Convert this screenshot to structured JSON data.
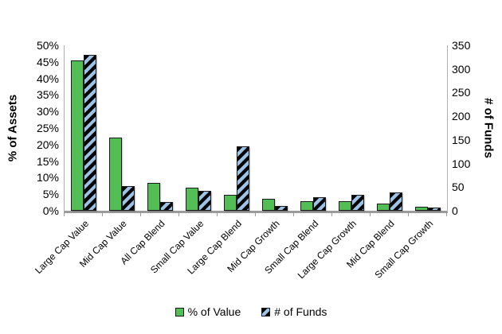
{
  "chart_data": {
    "type": "bar",
    "title": "",
    "categories": [
      "Large Cap Value",
      "Mid Cap Value",
      "All Cap Blend",
      "Small Cap Value",
      "Large Cap Blend",
      "Mid Cap Growth",
      "Small Cap Blend",
      "Large Cap Growth",
      "Mid Cap Blend",
      "Small Cap Growth"
    ],
    "series": [
      {
        "name": "% of Value",
        "axis": "left",
        "unit": "%",
        "values": [
          45.5,
          22,
          8.5,
          7,
          4.7,
          3.5,
          3,
          2.8,
          2.1,
          1.2
        ],
        "color": "#53BE56"
      },
      {
        "name": "# of Funds",
        "axis": "right",
        "unit": "funds",
        "values": [
          330,
          52,
          18,
          42,
          137,
          10,
          28,
          33,
          39,
          6
        ],
        "fill": "hatch",
        "hatch_colors": [
          "#050505",
          "#9CC2E5"
        ]
      }
    ],
    "left_axis": {
      "title": "% of Assets",
      "min": 0,
      "max": 50,
      "step": 5,
      "suffix": "%"
    },
    "right_axis": {
      "title": "# of Funds",
      "min": 0,
      "max": 350,
      "step": 50,
      "suffix": ""
    },
    "legend": {
      "position": "bottom",
      "items": [
        "% of Value",
        "# of Funds"
      ]
    },
    "grid": false,
    "category_label_rotation": -45
  }
}
